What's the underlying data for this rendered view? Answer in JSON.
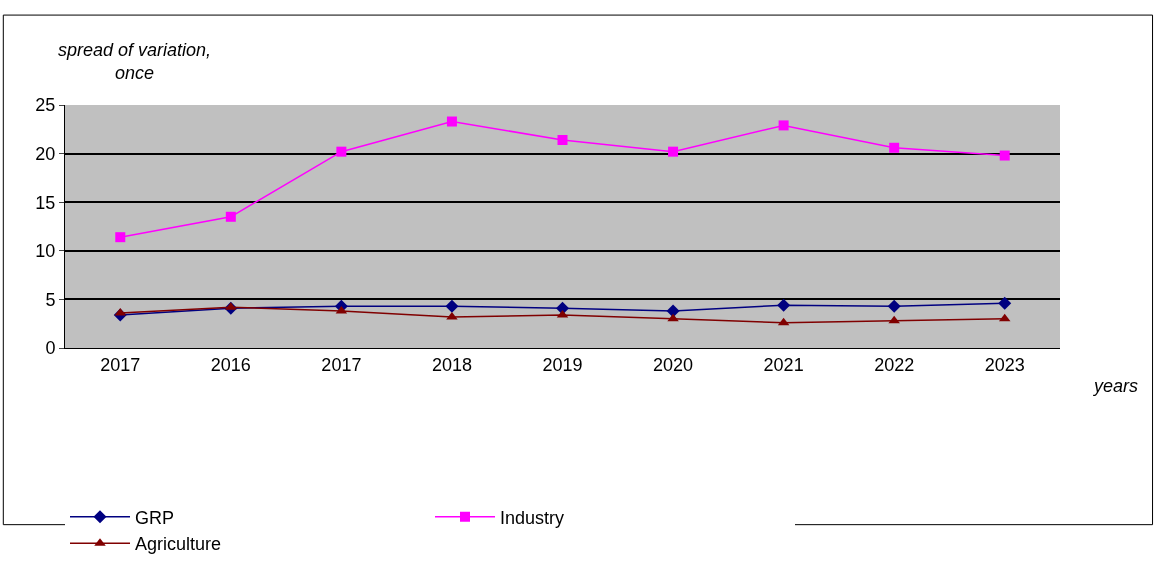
{
  "chart_data": {
    "type": "line",
    "ylabel": "spread of variation,\nonce",
    "xlabel": "years",
    "categories": [
      "2017",
      "2016",
      "2017",
      "2018",
      "2019",
      "2020",
      "2021",
      "2022",
      "2023"
    ],
    "series": [
      {
        "name": "GRP",
        "color": "#000080",
        "marker": "diamond",
        "values": [
          3.4,
          4.1,
          4.3,
          4.3,
          4.1,
          3.8,
          4.4,
          4.3,
          4.6
        ]
      },
      {
        "name": "Industry",
        "color": "#ff00ff",
        "marker": "square",
        "values": [
          11.4,
          13.5,
          20.2,
          23.3,
          21.4,
          20.2,
          22.9,
          20.6,
          19.8
        ]
      },
      {
        "name": "Agriculture",
        "color": "#800000",
        "marker": "triangle",
        "values": [
          3.6,
          4.2,
          3.8,
          3.2,
          3.4,
          3.0,
          2.6,
          2.8,
          3.0
        ]
      }
    ],
    "ylim": [
      0,
      25
    ],
    "yticks": [
      0,
      5,
      10,
      15,
      20,
      25
    ],
    "grid": "y",
    "legend": "bottom"
  }
}
